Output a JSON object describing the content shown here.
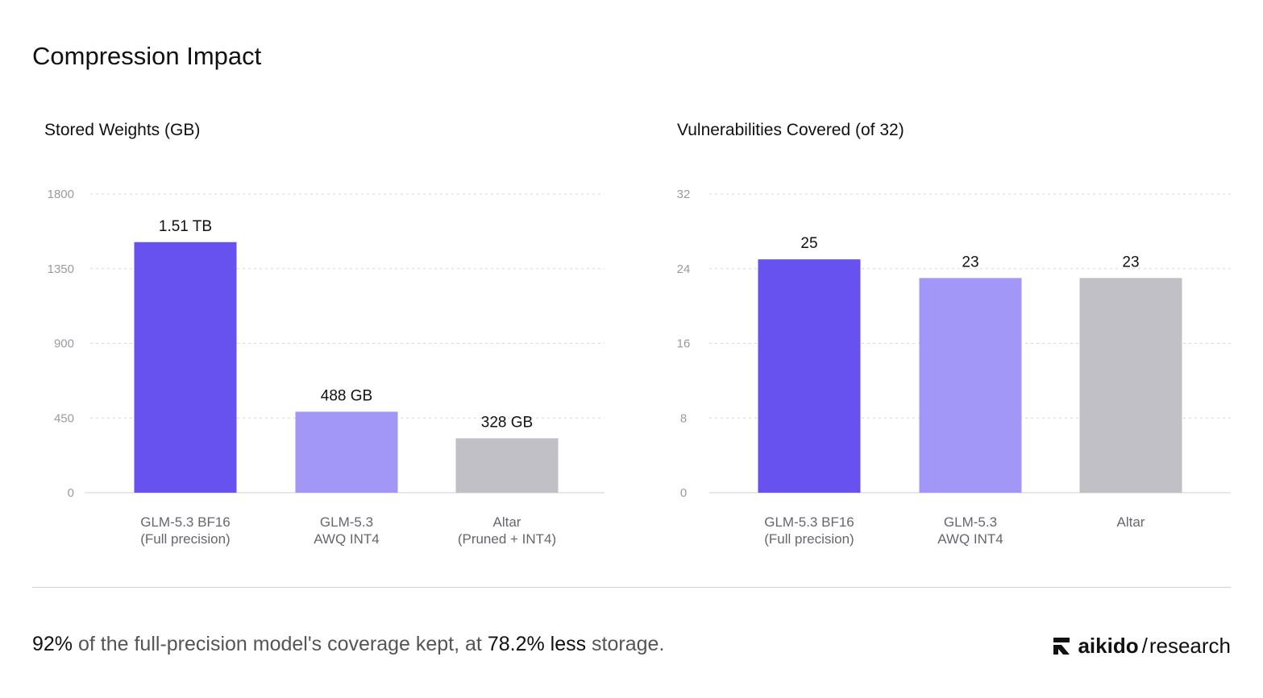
{
  "page": {
    "title": "Compression Impact"
  },
  "colors": {
    "primary": "#6752F0",
    "secondary": "#A296F6",
    "neutral": "#C0C0C6",
    "grid": "#D8D8DC",
    "axis_text": "#9A9AA2",
    "category_text": "#666670"
  },
  "chart_data": [
    {
      "type": "bar",
      "title": "Stored Weights (GB)",
      "categories": [
        [
          "GLM-5.3 BF16",
          "(Full precision)"
        ],
        [
          "GLM-5.3",
          "AWQ INT4"
        ],
        [
          "Altar",
          "(Pruned + INT4)"
        ]
      ],
      "values": [
        1510,
        488,
        328
      ],
      "value_labels": [
        "1.51 TB",
        "488 GB",
        "328 GB"
      ],
      "bar_colors": [
        "#6752F0",
        "#A296F6",
        "#C0C0C6"
      ],
      "yticks": [
        0,
        450,
        900,
        1350,
        1800
      ],
      "ylim": [
        0,
        1800
      ],
      "grid": true
    },
    {
      "type": "bar",
      "title": "Vulnerabilities Covered (of 32)",
      "categories": [
        [
          "GLM-5.3 BF16",
          "(Full precision)"
        ],
        [
          "GLM-5.3",
          "AWQ INT4"
        ],
        [
          "Altar"
        ]
      ],
      "values": [
        25,
        23,
        23
      ],
      "value_labels": [
        "25",
        "23",
        "23"
      ],
      "bar_colors": [
        "#6752F0",
        "#A296F6",
        "#C0C0C6"
      ],
      "yticks": [
        0,
        8,
        16,
        24,
        32
      ],
      "ylim": [
        0,
        32
      ],
      "grid": true
    }
  ],
  "footer": {
    "highlight_1": "92%",
    "text_1": " of the full-precision model's coverage kept, at ",
    "highlight_2": "78.2%",
    "highlight_3": " less",
    "text_2": " storage."
  },
  "brand": {
    "logo_icon": "aikido-logo-icon",
    "name": "aikido",
    "slash": "/",
    "suffix": "research"
  }
}
